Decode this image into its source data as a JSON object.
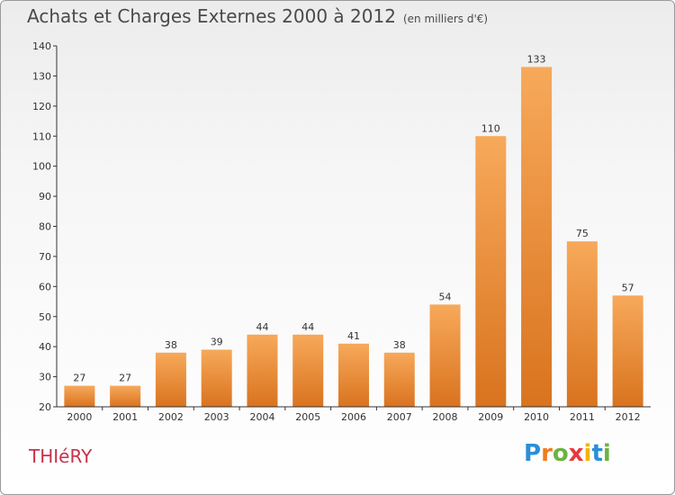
{
  "title": {
    "main": "Achats et Charges Externes 2000 à 2012",
    "unit": "(en milliers d'€)"
  },
  "place": "THIéRY",
  "logo": {
    "letters": [
      "P",
      "r",
      "o",
      "x",
      "i",
      "t",
      "i"
    ],
    "colors": [
      "#2b8fd6",
      "#f07c1e",
      "#6cb33f",
      "#e8383d",
      "#f4b400",
      "#2b8fd6",
      "#6cb33f"
    ]
  },
  "colors": {
    "bar_light": "#f7a95a",
    "bar_dark": "#d9731f",
    "axis": "#333333",
    "city": "#c8324a"
  },
  "chart_data": {
    "type": "bar",
    "categories": [
      "2000",
      "2001",
      "2002",
      "2003",
      "2004",
      "2005",
      "2006",
      "2007",
      "2008",
      "2009",
      "2010",
      "2011",
      "2012"
    ],
    "values": [
      27,
      27,
      38,
      39,
      44,
      44,
      41,
      38,
      54,
      110,
      133,
      75,
      57
    ],
    "ylim": [
      20,
      140
    ],
    "yticks": [
      20,
      30,
      40,
      50,
      60,
      70,
      80,
      90,
      100,
      110,
      120,
      130,
      140
    ],
    "xlabel": "",
    "ylabel": "",
    "grid": false
  }
}
